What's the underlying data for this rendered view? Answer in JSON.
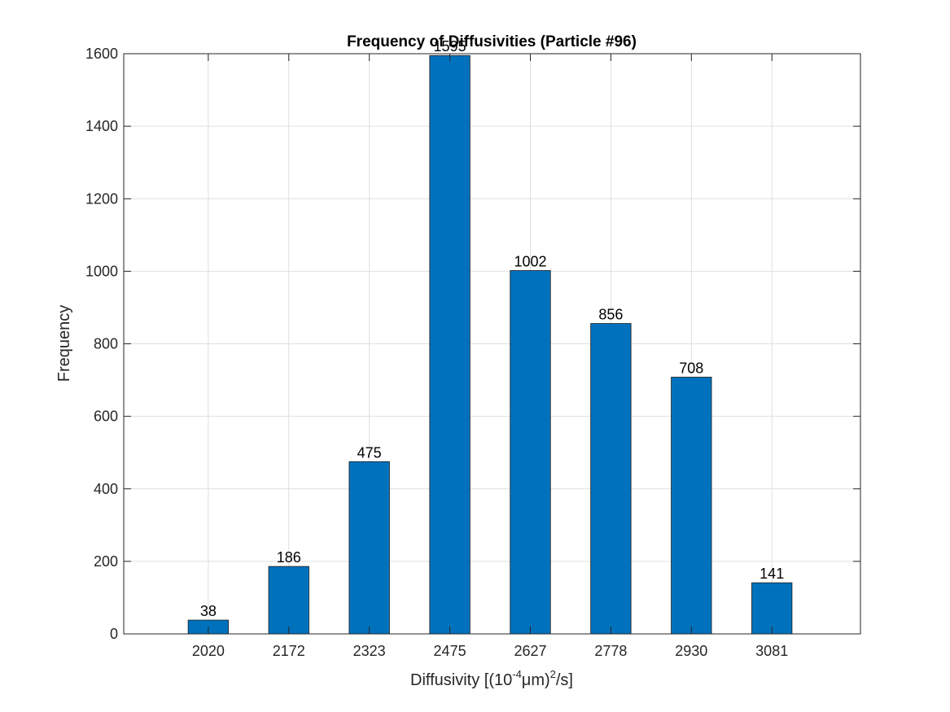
{
  "chart_data": {
    "type": "bar",
    "title": "Frequency of Diffusivities (Particle #96)",
    "xlabel": {
      "p1": "Diffusivity [(10",
      "sup1": "-4",
      "p2": "μm)",
      "sup2": "2",
      "p3": "/s]"
    },
    "ylabel": "Frequency",
    "categories": [
      "2020",
      "2172",
      "2323",
      "2475",
      "2627",
      "2778",
      "2930",
      "3081"
    ],
    "values": [
      38,
      186,
      475,
      1595,
      1002,
      856,
      708,
      141
    ],
    "ylim": [
      0,
      1600
    ],
    "yticks": [
      0,
      200,
      400,
      600,
      800,
      1000,
      1200,
      1400,
      1600
    ],
    "grid": true,
    "bar_color": "#0072BD",
    "show_data_labels": true
  }
}
